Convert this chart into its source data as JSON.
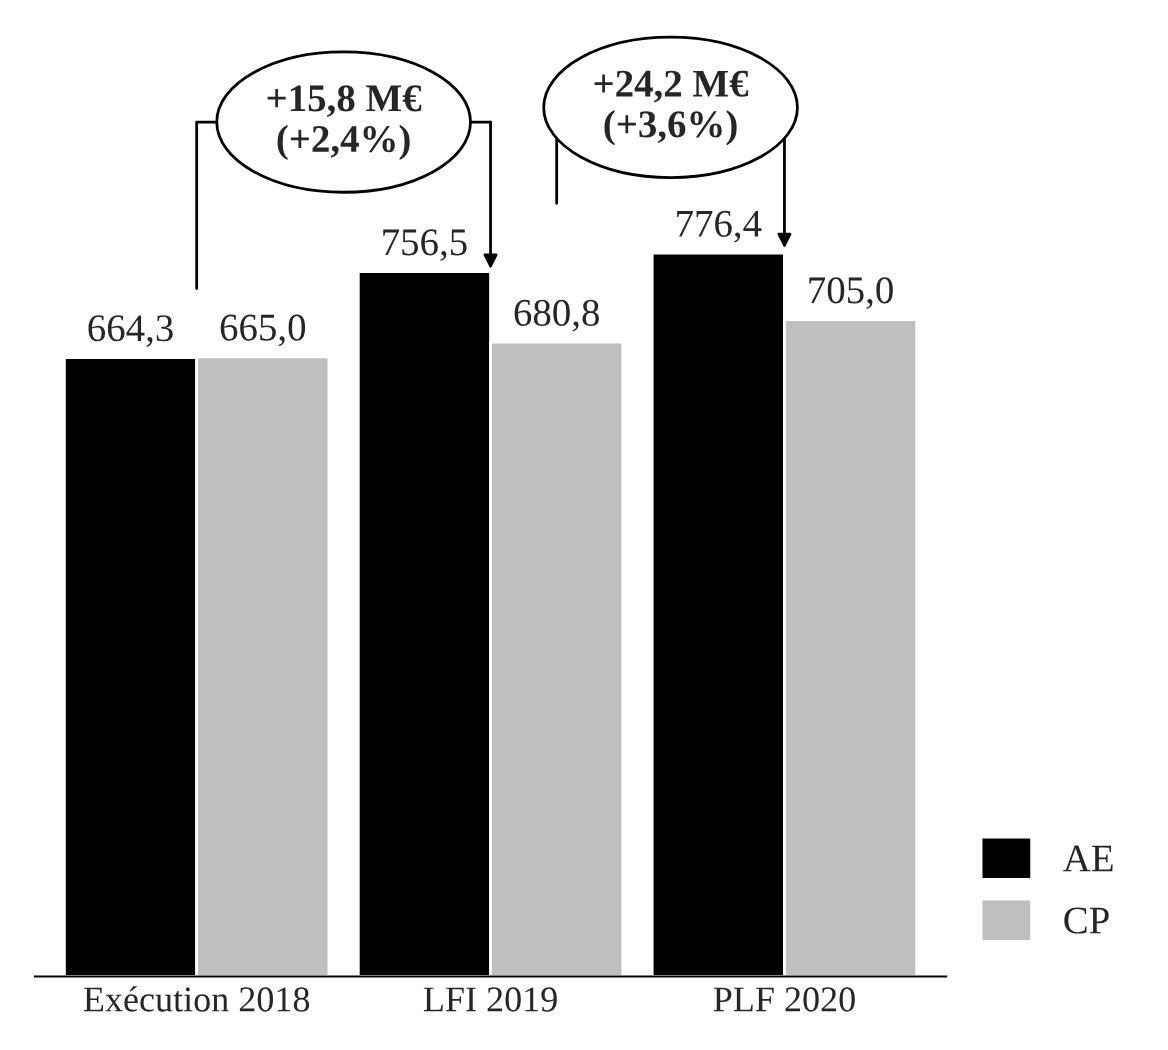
{
  "chart_data": {
    "type": "bar",
    "categories": [
      "Exécution 2018",
      "LFI 2019",
      "PLF 2020"
    ],
    "series": [
      {
        "name": "AE",
        "color": "#000000",
        "values": [
          664.3,
          756.5,
          776.4
        ],
        "value_labels": [
          "664,3",
          "756,5",
          "776,4"
        ]
      },
      {
        "name": "CP",
        "color": "#bfbfbf",
        "values": [
          665.0,
          680.8,
          705.0
        ],
        "value_labels": [
          "665,0",
          "680,8",
          "705,0"
        ]
      }
    ],
    "tick_labels": "x",
    "legend": "bottom right",
    "grid": false,
    "annotations": [
      "+15,8 M€\n(+2,4%)",
      "+24,2 M€\n(+3,6%)"
    ]
  }
}
